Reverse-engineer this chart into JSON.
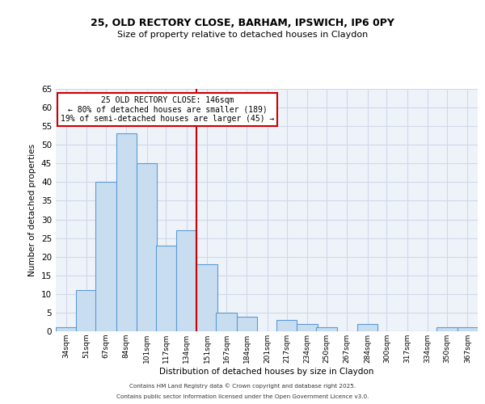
{
  "title1": "25, OLD RECTORY CLOSE, BARHAM, IPSWICH, IP6 0PY",
  "title2": "Size of property relative to detached houses in Claydon",
  "xlabel": "Distribution of detached houses by size in Claydon",
  "ylabel": "Number of detached properties",
  "bin_labels": [
    "34sqm",
    "51sqm",
    "67sqm",
    "84sqm",
    "101sqm",
    "117sqm",
    "134sqm",
    "151sqm",
    "167sqm",
    "184sqm",
    "201sqm",
    "217sqm",
    "234sqm",
    "250sqm",
    "267sqm",
    "284sqm",
    "300sqm",
    "317sqm",
    "334sqm",
    "350sqm",
    "367sqm"
  ],
  "bin_edges": [
    34,
    51,
    67,
    84,
    101,
    117,
    134,
    151,
    167,
    184,
    201,
    217,
    234,
    250,
    267,
    284,
    300,
    317,
    334,
    350,
    367
  ],
  "counts": [
    1,
    11,
    40,
    53,
    45,
    23,
    27,
    18,
    5,
    4,
    0,
    3,
    2,
    1,
    0,
    2,
    0,
    0,
    0,
    1,
    1
  ],
  "bar_facecolor": "#c9ddf0",
  "bar_edgecolor": "#5b9bd5",
  "vline_x": 151,
  "vline_color": "#cc0000",
  "grid_color": "#d0d8e8",
  "bg_color": "#eef3fa",
  "annotation_line1": "25 OLD RECTORY CLOSE: 146sqm",
  "annotation_line2": "← 80% of detached houses are smaller (189)",
  "annotation_line3": "19% of semi-detached houses are larger (45) →",
  "annotation_box_color": "#cc0000",
  "footer1": "Contains HM Land Registry data © Crown copyright and database right 2025.",
  "footer2": "Contains public sector information licensed under the Open Government Licence v3.0.",
  "ylim": [
    0,
    65
  ],
  "yticks": [
    0,
    5,
    10,
    15,
    20,
    25,
    30,
    35,
    40,
    45,
    50,
    55,
    60,
    65
  ]
}
